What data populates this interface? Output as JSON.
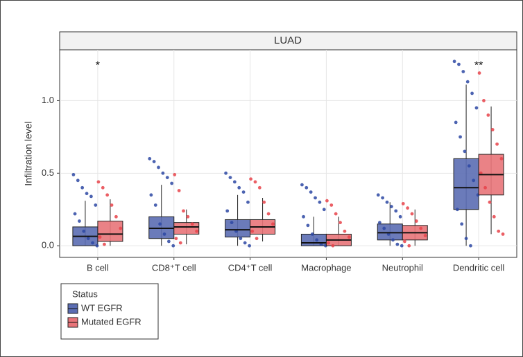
{
  "chart_data": {
    "type": "box",
    "title": "LUAD",
    "y_label": "Infiltration level",
    "categories": [
      "B cell",
      "CD8⁺T cell",
      "CD4⁺T cell",
      "Macrophage",
      "Neutrophil",
      "Dendritic cell"
    ],
    "ylim": [
      -0.08,
      1.35
    ],
    "yticks": [
      {
        "value": 0,
        "label": "0.0"
      },
      {
        "value": 0.5,
        "label": "0.5"
      },
      {
        "value": 1,
        "label": "1.0"
      }
    ],
    "grid": true,
    "legend_title": "Status",
    "annotations": [
      {
        "category": 0,
        "text": "*",
        "y": 1.24
      },
      {
        "category": 5,
        "text": "**",
        "y": 1.24
      }
    ],
    "series": [
      {
        "name": "WT EGFR",
        "color": "#5b6db3",
        "point_color": "#2d48a3",
        "boxes": [
          {
            "min": 0,
            "q1": 0,
            "median": 0.065,
            "q3": 0.13,
            "max": 0.31,
            "points": [
              0.49,
              0.45,
              0.4,
              0.36,
              0.34,
              0.28,
              0.22,
              0.17,
              0.1,
              0.05,
              0.02,
              0.0
            ]
          },
          {
            "min": 0,
            "q1": 0.05,
            "median": 0.12,
            "q3": 0.2,
            "max": 0.42,
            "points": [
              0.6,
              0.58,
              0.54,
              0.5,
              0.47,
              0.43,
              0.35,
              0.28,
              0.15,
              0.08,
              0.03,
              0.0
            ]
          },
          {
            "min": 0,
            "q1": 0.06,
            "median": 0.11,
            "q3": 0.18,
            "max": 0.35,
            "points": [
              0.5,
              0.47,
              0.44,
              0.4,
              0.37,
              0.3,
              0.24,
              0.16,
              0.1,
              0.05,
              0.02,
              0.0
            ]
          },
          {
            "min": 0,
            "q1": 0,
            "median": 0.02,
            "q3": 0.08,
            "max": 0.2,
            "points": [
              0.42,
              0.4,
              0.37,
              0.33,
              0.3,
              0.25,
              0.2,
              0.14,
              0.08,
              0.04,
              0.01,
              0.0
            ]
          },
          {
            "min": 0,
            "q1": 0.04,
            "median": 0.09,
            "q3": 0.15,
            "max": 0.3,
            "points": [
              0.35,
              0.33,
              0.3,
              0.27,
              0.24,
              0.2,
              0.16,
              0.12,
              0.08,
              0.04,
              0.01,
              0.0
            ]
          },
          {
            "min": 0,
            "q1": 0.25,
            "median": 0.4,
            "q3": 0.6,
            "max": 1.11,
            "points": [
              1.27,
              1.25,
              1.2,
              1.13,
              1.05,
              0.95,
              0.85,
              0.75,
              0.65,
              0.55,
              0.45,
              0.35,
              0.25,
              0.15,
              0.05,
              0.0
            ]
          }
        ]
      },
      {
        "name": "Mutated EGFR",
        "color": "#e87479",
        "point_color": "#e8434a",
        "boxes": [
          {
            "min": 0,
            "q1": 0.03,
            "median": 0.08,
            "q3": 0.17,
            "max": 0.32,
            "points": [
              0.44,
              0.4,
              0.35,
              0.28,
              0.2,
              0.12,
              0.06,
              0.01
            ]
          },
          {
            "min": 0.01,
            "q1": 0.08,
            "median": 0.13,
            "q3": 0.16,
            "max": 0.25,
            "points": [
              0.49,
              0.38,
              0.24,
              0.2,
              0.15,
              0.1,
              0.05,
              0.02
            ]
          },
          {
            "min": 0.03,
            "q1": 0.08,
            "median": 0.13,
            "q3": 0.18,
            "max": 0.33,
            "points": [
              0.46,
              0.44,
              0.4,
              0.3,
              0.22,
              0.15,
              0.1,
              0.05
            ]
          },
          {
            "min": 0,
            "q1": 0,
            "median": 0.04,
            "q3": 0.08,
            "max": 0.2,
            "points": [
              0.31,
              0.28,
              0.22,
              0.16,
              0.1,
              0.06,
              0.02,
              0.0
            ]
          },
          {
            "min": 0,
            "q1": 0.04,
            "median": 0.09,
            "q3": 0.14,
            "max": 0.25,
            "points": [
              0.29,
              0.26,
              0.22,
              0.17,
              0.12,
              0.07,
              0.03,
              0.0
            ]
          },
          {
            "min": 0.08,
            "q1": 0.35,
            "median": 0.49,
            "q3": 0.63,
            "max": 0.96,
            "points": [
              1.19,
              1.0,
              0.9,
              0.8,
              0.7,
              0.6,
              0.5,
              0.4,
              0.3,
              0.2,
              0.1,
              0.08
            ]
          }
        ]
      }
    ]
  }
}
